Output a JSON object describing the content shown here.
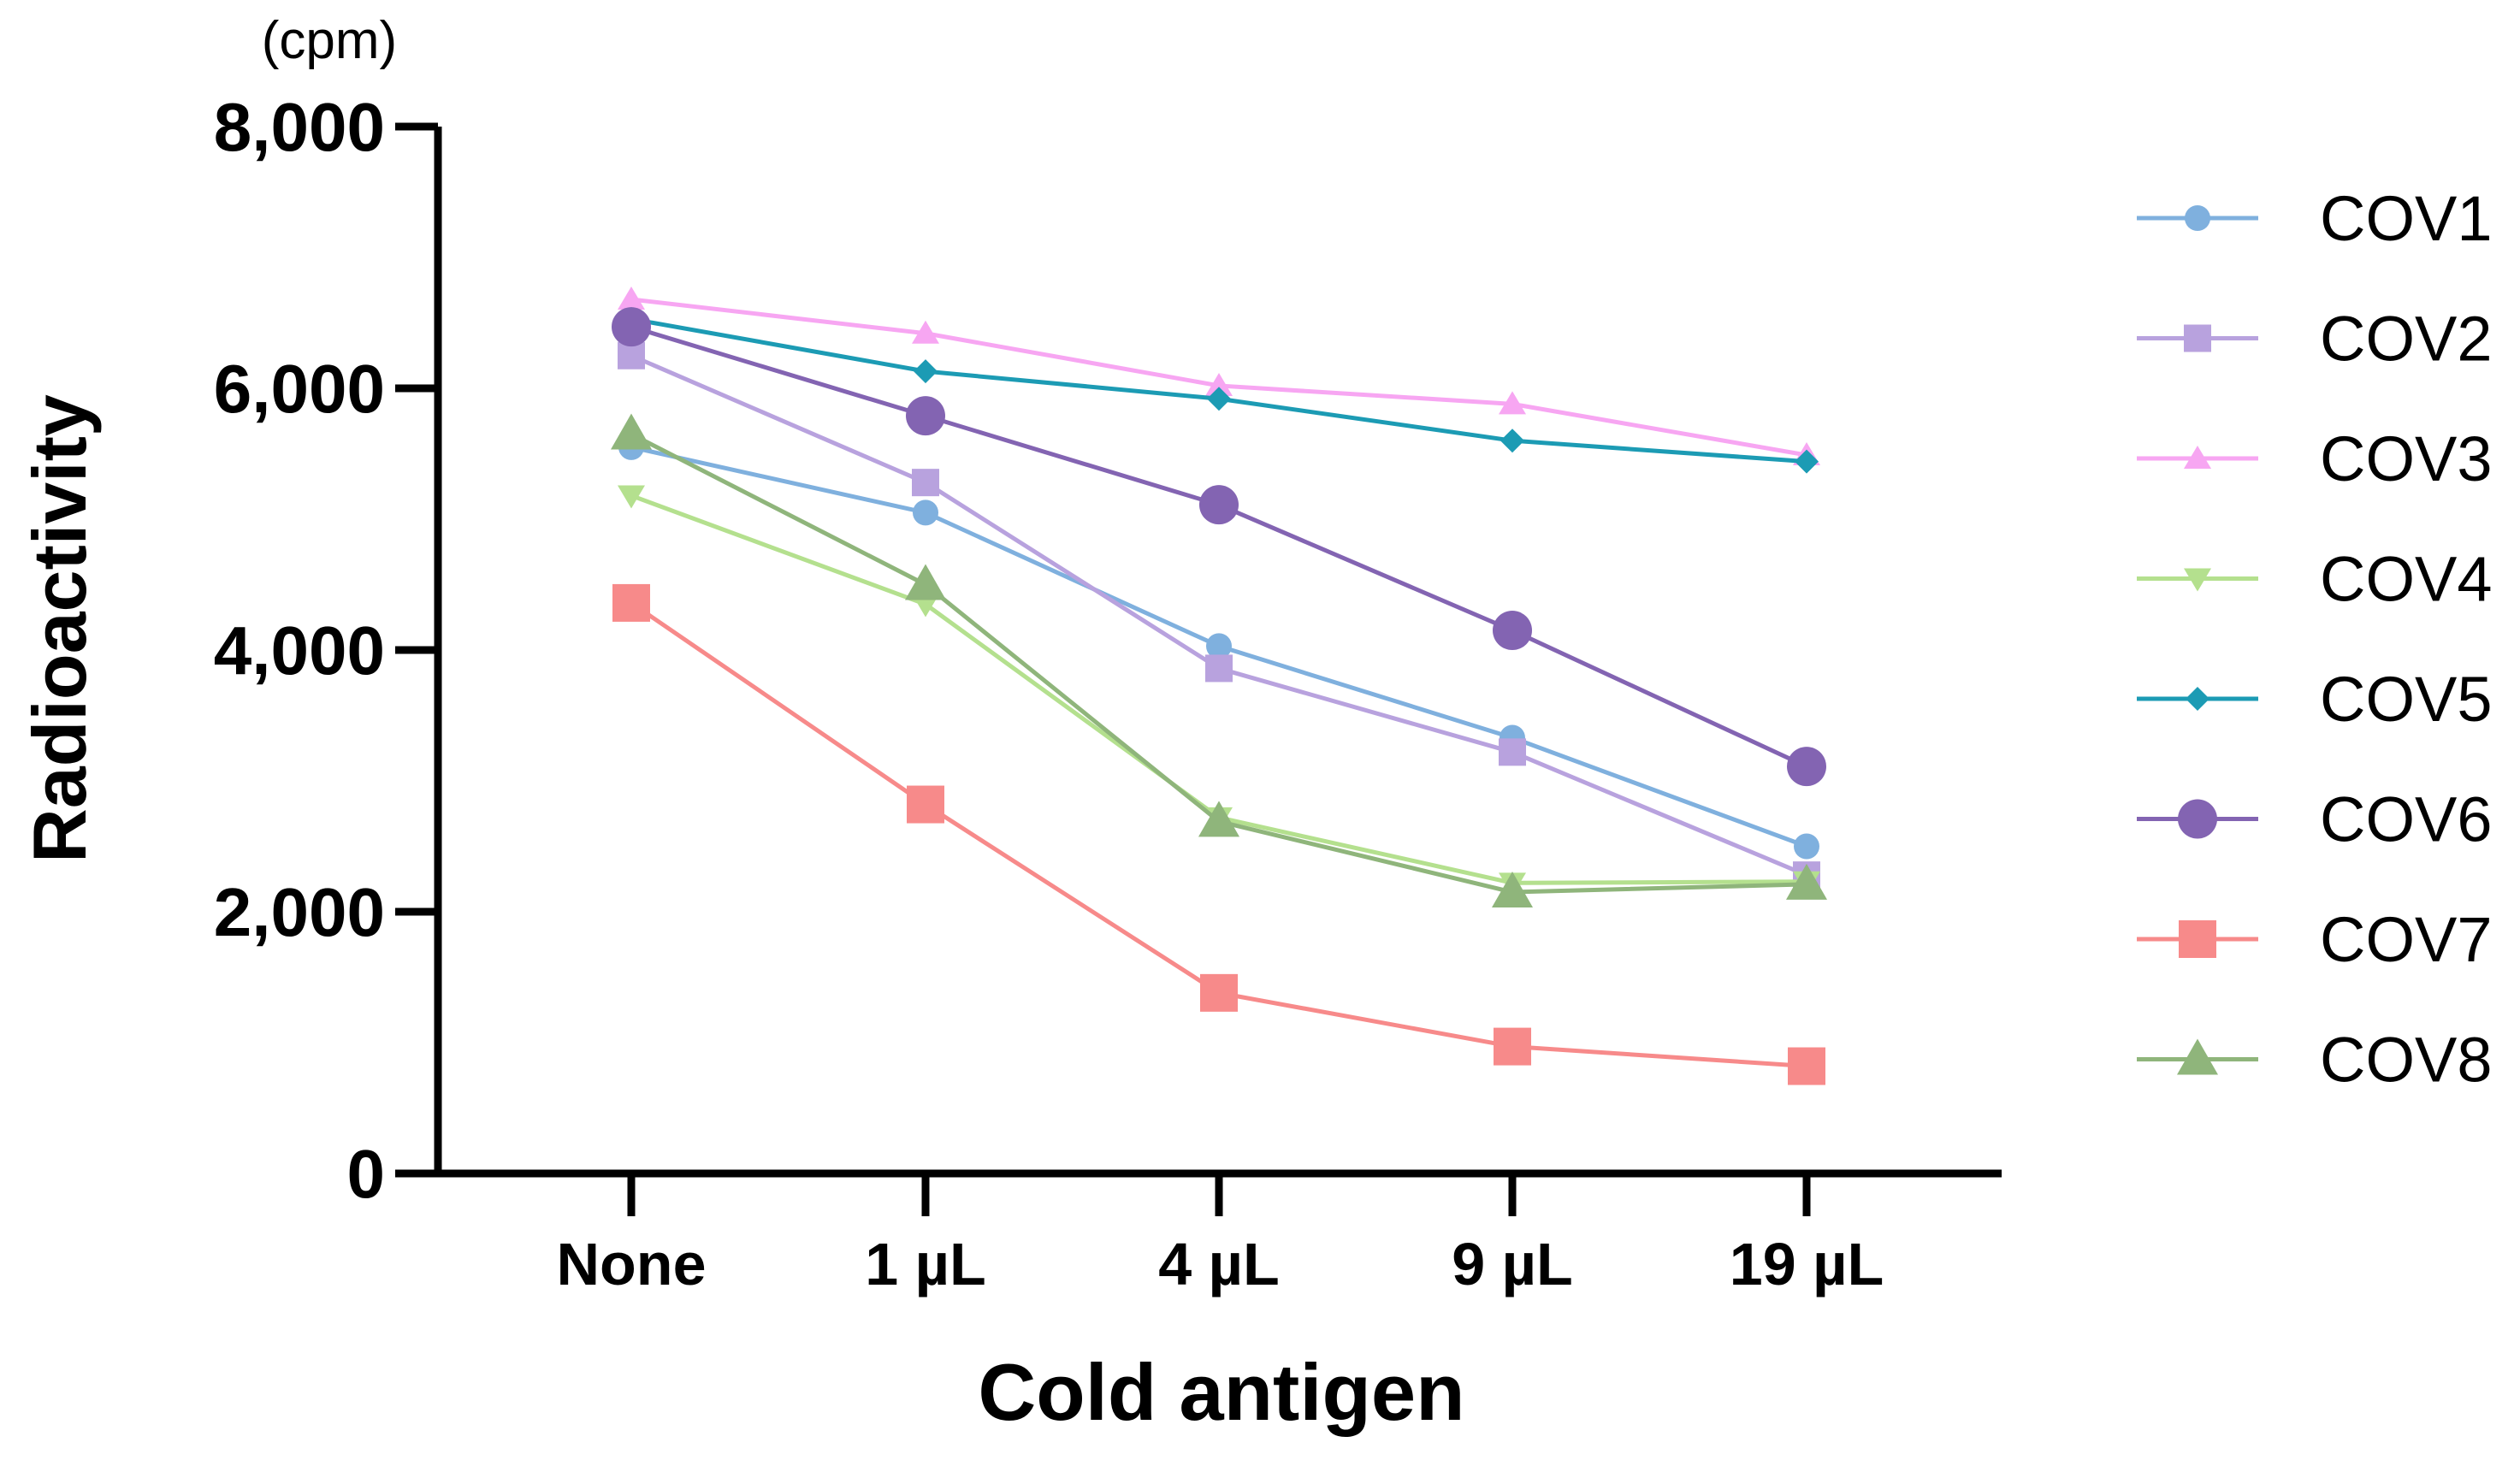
{
  "chart_data": {
    "type": "line",
    "title": "",
    "xlabel": "Cold antigen",
    "ylabel": "Radioactivity",
    "yunit": "(cpm)",
    "ylim": [
      0,
      8000
    ],
    "yticks": [
      0,
      2000,
      4000,
      6000,
      8000
    ],
    "ytick_labels": [
      "0",
      "2,000",
      "4,000",
      "6,000",
      "8,000"
    ],
    "categories": [
      "None",
      "1 µL",
      "4 µL",
      "9 µL",
      "19 µL"
    ],
    "grid": false,
    "legend_position": "right",
    "series": [
      {
        "name": "COV1",
        "color": "#7fb0de",
        "marker": "circle",
        "values": [
          5550,
          5050,
          4030,
          3330,
          2500
        ]
      },
      {
        "name": "COV2",
        "color": "#b8a2de",
        "marker": "square",
        "values": [
          6250,
          5280,
          3860,
          3220,
          2280
        ]
      },
      {
        "name": "COV3",
        "color": "#f7a6f2",
        "marker": "triangle-up",
        "values": [
          6680,
          6420,
          6020,
          5880,
          5490
        ]
      },
      {
        "name": "COV4",
        "color": "#b4e08e",
        "marker": "triangle-down",
        "values": [
          5180,
          4350,
          2720,
          2220,
          2230
        ]
      },
      {
        "name": "COV5",
        "color": "#1c9bb4",
        "marker": "diamond",
        "values": [
          6530,
          6130,
          5920,
          5600,
          5440
        ]
      },
      {
        "name": "COV6",
        "color": "#8364b2",
        "marker": "circle-large",
        "values": [
          6470,
          5790,
          5110,
          4150,
          3110
        ]
      },
      {
        "name": "COV7",
        "color": "#f78a8a",
        "marker": "square-large",
        "values": [
          4360,
          2820,
          1380,
          970,
          820
        ]
      },
      {
        "name": "COV8",
        "color": "#8fb57b",
        "marker": "triangle-up-large",
        "values": [
          5650,
          4500,
          2690,
          2150,
          2210
        ]
      }
    ]
  }
}
